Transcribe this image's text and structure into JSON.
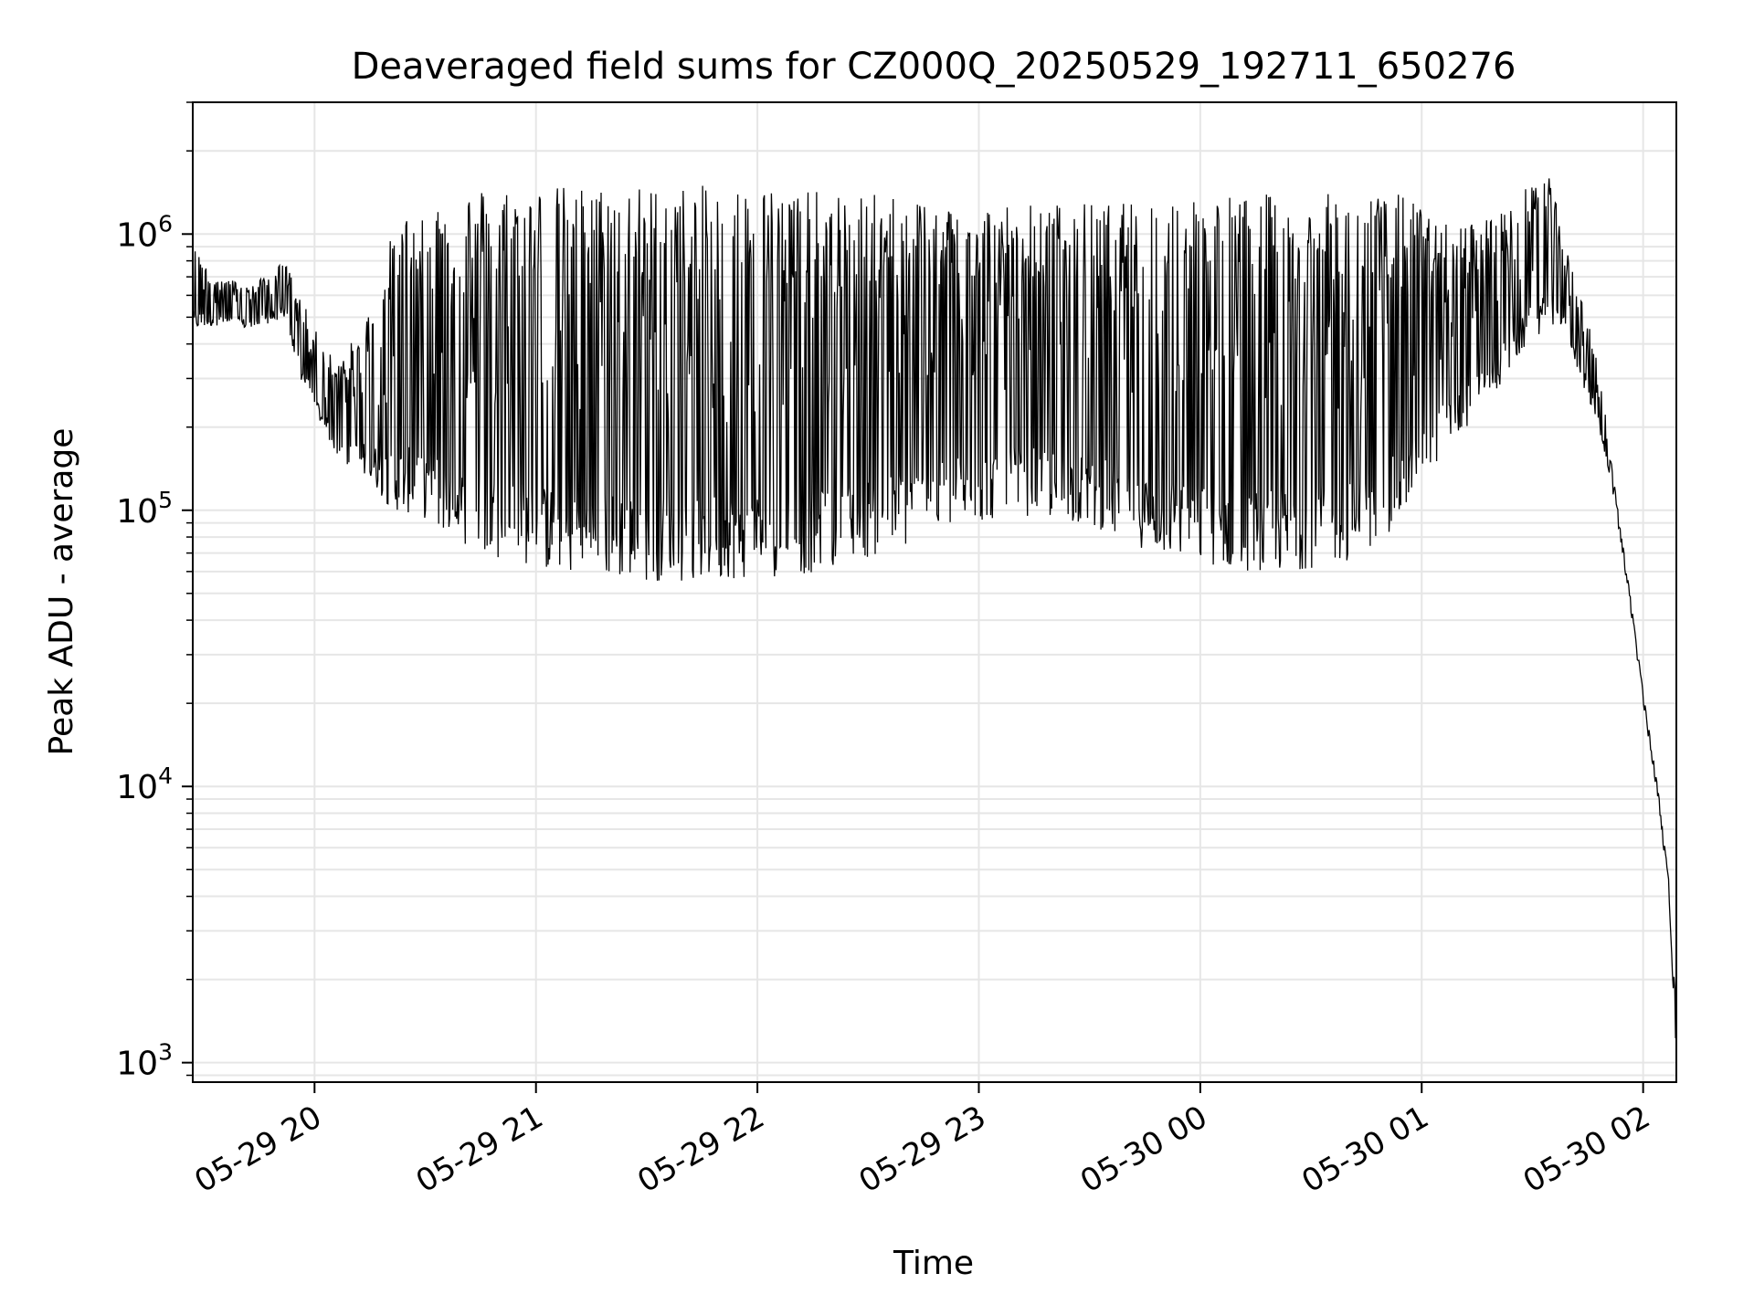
{
  "chart_data": {
    "type": "line",
    "title": "Deaveraged field sums for CZ000Q_20250529_192711_650276",
    "xlabel": "Time",
    "ylabel": "Peak ADU - average",
    "yscale": "log",
    "ylim": [
      850,
      3000000
    ],
    "xlim": [
      "2025-05-29 19:27",
      "2025-05-30 02:09"
    ],
    "grid": true,
    "legend": "none",
    "line_color": "#000000",
    "grid_color": "#e6e6e6",
    "x_ticks": [
      {
        "label": "05-29 20",
        "t": "2025-05-29 20:00"
      },
      {
        "label": "05-29 21",
        "t": "2025-05-29 21:00"
      },
      {
        "label": "05-29 22",
        "t": "2025-05-29 22:00"
      },
      {
        "label": "05-29 23",
        "t": "2025-05-29 23:00"
      },
      {
        "label": "05-30 00",
        "t": "2025-05-30 00:00"
      },
      {
        "label": "05-30 01",
        "t": "2025-05-30 01:00"
      },
      {
        "label": "05-30 02",
        "t": "2025-05-30 02:00"
      }
    ],
    "y_ticks": [
      {
        "base": "10",
        "exp": "3",
        "value": 1000
      },
      {
        "base": "10",
        "exp": "4",
        "value": 10000
      },
      {
        "base": "10",
        "exp": "5",
        "value": 100000
      },
      {
        "base": "10",
        "exp": "6",
        "value": 1000000
      }
    ],
    "series": [
      {
        "name": "",
        "x": [
          "2025-05-29 19:27",
          "2025-05-29 19:35",
          "2025-05-29 19:43",
          "2025-05-29 19:52",
          "2025-05-29 19:56",
          "2025-05-29 20:02",
          "2025-05-29 20:07",
          "2025-05-29 20:14",
          "2025-05-29 20:21",
          "2025-05-29 20:29",
          "2025-05-29 20:37",
          "2025-05-29 20:45",
          "2025-05-29 20:55",
          "2025-05-29 21:03",
          "2025-05-29 21:12",
          "2025-05-29 21:20",
          "2025-05-29 21:28",
          "2025-05-29 21:37",
          "2025-05-29 21:45",
          "2025-05-29 21:53",
          "2025-05-29 22:01",
          "2025-05-29 22:10",
          "2025-05-29 22:18",
          "2025-05-29 22:26",
          "2025-05-29 22:35",
          "2025-05-29 22:43",
          "2025-05-29 22:51",
          "2025-05-29 23:00",
          "2025-05-29 23:08",
          "2025-05-29 23:16",
          "2025-05-29 23:25",
          "2025-05-29 23:33",
          "2025-05-29 23:41",
          "2025-05-29 23:49",
          "2025-05-29 23:58",
          "2025-05-30 00:06",
          "2025-05-30 00:14",
          "2025-05-30 00:23",
          "2025-05-30 00:31",
          "2025-05-30 00:39",
          "2025-05-30 00:48",
          "2025-05-30 00:56",
          "2025-05-30 01:04",
          "2025-05-30 01:13",
          "2025-05-30 01:21",
          "2025-05-30 01:29",
          "2025-05-30 01:34",
          "2025-05-30 01:39",
          "2025-05-30 01:43",
          "2025-05-30 01:48",
          "2025-05-30 01:52",
          "2025-05-30 01:56",
          "2025-05-30 02:00",
          "2025-05-30 02:04",
          "2025-05-30 02:07",
          "2025-05-30 02:09"
        ],
        "low": [
          450000,
          470000,
          450000,
          500000,
          300000,
          200000,
          150000,
          130000,
          100000,
          95000,
          80000,
          70000,
          65000,
          60000,
          58000,
          57000,
          56000,
          55000,
          55000,
          56000,
          57000,
          58000,
          60000,
          65000,
          70000,
          75000,
          85000,
          90000,
          95000,
          95000,
          90000,
          85000,
          75000,
          70000,
          65000,
          62000,
          60000,
          60000,
          62000,
          65000,
          70000,
          100000,
          150000,
          200000,
          280000,
          400000,
          450000,
          450000,
          300000,
          200000,
          110000,
          50000,
          20000,
          9000,
          4000,
          1000
        ],
        "high": [
          900000,
          700000,
          650000,
          800000,
          600000,
          400000,
          350000,
          500000,
          1000000,
          1400000,
          1400000,
          1500000,
          1500000,
          1500000,
          1500000,
          1500000,
          1500000,
          1500000,
          1500000,
          1500000,
          1500000,
          1500000,
          1400000,
          1400000,
          1400000,
          1400000,
          1300000,
          1300000,
          1300000,
          1300000,
          1300000,
          1300000,
          1300000,
          1400000,
          1400000,
          1400000,
          1400000,
          1400000,
          1400000,
          1400000,
          1400000,
          1400000,
          1100000,
          1100000,
          1200000,
          1500000,
          1800000,
          900000,
          600000,
          350000,
          130000,
          55000,
          22000,
          10000,
          4500,
          1500
        ]
      }
    ]
  }
}
